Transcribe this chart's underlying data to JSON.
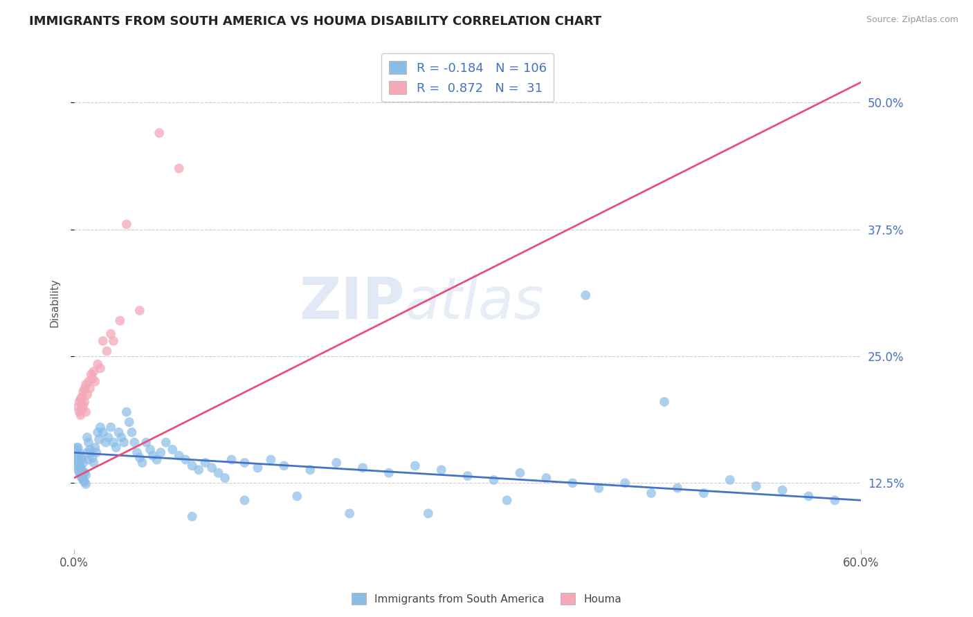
{
  "title": "IMMIGRANTS FROM SOUTH AMERICA VS HOUMA DISABILITY CORRELATION CHART",
  "source": "Source: ZipAtlas.com",
  "ylabel": "Disability",
  "xlim": [
    0.0,
    0.6
  ],
  "ylim": [
    0.06,
    0.545
  ],
  "yticks": [
    0.125,
    0.25,
    0.375,
    0.5
  ],
  "ytick_labels": [
    "12.5%",
    "25.0%",
    "37.5%",
    "50.0%"
  ],
  "xticks": [
    0.0,
    0.6
  ],
  "xtick_labels": [
    "0.0%",
    "60.0%"
  ],
  "blue_label": "Immigrants from South America",
  "pink_label": "Houma",
  "blue_R": -0.184,
  "blue_N": 106,
  "pink_R": 0.872,
  "pink_N": 31,
  "blue_color": "#89bde8",
  "pink_color": "#f4a8b8",
  "blue_line_color": "#4472c4",
  "pink_line_color": "#e8507a",
  "background_color": "#ffffff",
  "grid_color": "#cccccc",
  "blue_line_x0": 0.0,
  "blue_line_y0": 0.155,
  "blue_line_x1": 0.6,
  "blue_line_y1": 0.108,
  "pink_line_x0": 0.0,
  "pink_line_y0": 0.13,
  "pink_line_x1": 0.6,
  "pink_line_y1": 0.52,
  "blue_scatter_x": [
    0.001,
    0.001,
    0.001,
    0.002,
    0.002,
    0.002,
    0.002,
    0.003,
    0.003,
    0.003,
    0.003,
    0.004,
    0.004,
    0.004,
    0.004,
    0.005,
    0.005,
    0.005,
    0.006,
    0.006,
    0.006,
    0.007,
    0.007,
    0.007,
    0.008,
    0.008,
    0.009,
    0.009,
    0.01,
    0.01,
    0.011,
    0.011,
    0.012,
    0.013,
    0.014,
    0.015,
    0.016,
    0.017,
    0.018,
    0.019,
    0.02,
    0.022,
    0.024,
    0.026,
    0.028,
    0.03,
    0.032,
    0.034,
    0.036,
    0.038,
    0.04,
    0.042,
    0.044,
    0.046,
    0.048,
    0.05,
    0.052,
    0.055,
    0.058,
    0.06,
    0.063,
    0.066,
    0.07,
    0.075,
    0.08,
    0.085,
    0.09,
    0.095,
    0.1,
    0.105,
    0.11,
    0.115,
    0.12,
    0.13,
    0.14,
    0.15,
    0.16,
    0.18,
    0.2,
    0.22,
    0.24,
    0.26,
    0.28,
    0.3,
    0.32,
    0.34,
    0.36,
    0.38,
    0.4,
    0.42,
    0.44,
    0.46,
    0.48,
    0.5,
    0.52,
    0.54,
    0.56,
    0.58,
    0.45,
    0.39,
    0.33,
    0.27,
    0.21,
    0.17,
    0.13,
    0.09
  ],
  "blue_scatter_y": [
    0.148,
    0.152,
    0.158,
    0.142,
    0.147,
    0.155,
    0.16,
    0.138,
    0.145,
    0.15,
    0.16,
    0.135,
    0.142,
    0.148,
    0.155,
    0.132,
    0.14,
    0.15,
    0.13,
    0.138,
    0.148,
    0.128,
    0.136,
    0.145,
    0.126,
    0.135,
    0.124,
    0.133,
    0.17,
    0.155,
    0.165,
    0.148,
    0.158,
    0.155,
    0.15,
    0.145,
    0.16,
    0.155,
    0.175,
    0.168,
    0.18,
    0.175,
    0.165,
    0.17,
    0.18,
    0.165,
    0.16,
    0.175,
    0.17,
    0.165,
    0.195,
    0.185,
    0.175,
    0.165,
    0.155,
    0.15,
    0.145,
    0.165,
    0.158,
    0.152,
    0.148,
    0.155,
    0.165,
    0.158,
    0.152,
    0.148,
    0.142,
    0.138,
    0.145,
    0.14,
    0.135,
    0.13,
    0.148,
    0.145,
    0.14,
    0.148,
    0.142,
    0.138,
    0.145,
    0.14,
    0.135,
    0.142,
    0.138,
    0.132,
    0.128,
    0.135,
    0.13,
    0.125,
    0.12,
    0.125,
    0.115,
    0.12,
    0.115,
    0.128,
    0.122,
    0.118,
    0.112,
    0.108,
    0.205,
    0.31,
    0.108,
    0.095,
    0.095,
    0.112,
    0.108,
    0.092
  ],
  "pink_scatter_x": [
    0.003,
    0.004,
    0.004,
    0.005,
    0.005,
    0.006,
    0.006,
    0.007,
    0.007,
    0.008,
    0.008,
    0.009,
    0.009,
    0.01,
    0.011,
    0.012,
    0.013,
    0.014,
    0.015,
    0.016,
    0.018,
    0.02,
    0.022,
    0.025,
    0.028,
    0.03,
    0.035,
    0.04,
    0.05,
    0.065,
    0.08
  ],
  "pink_scatter_y": [
    0.2,
    0.195,
    0.205,
    0.192,
    0.208,
    0.21,
    0.198,
    0.215,
    0.202,
    0.218,
    0.205,
    0.222,
    0.195,
    0.212,
    0.225,
    0.218,
    0.232,
    0.228,
    0.235,
    0.225,
    0.242,
    0.238,
    0.265,
    0.255,
    0.272,
    0.265,
    0.285,
    0.38,
    0.295,
    0.47,
    0.435
  ]
}
